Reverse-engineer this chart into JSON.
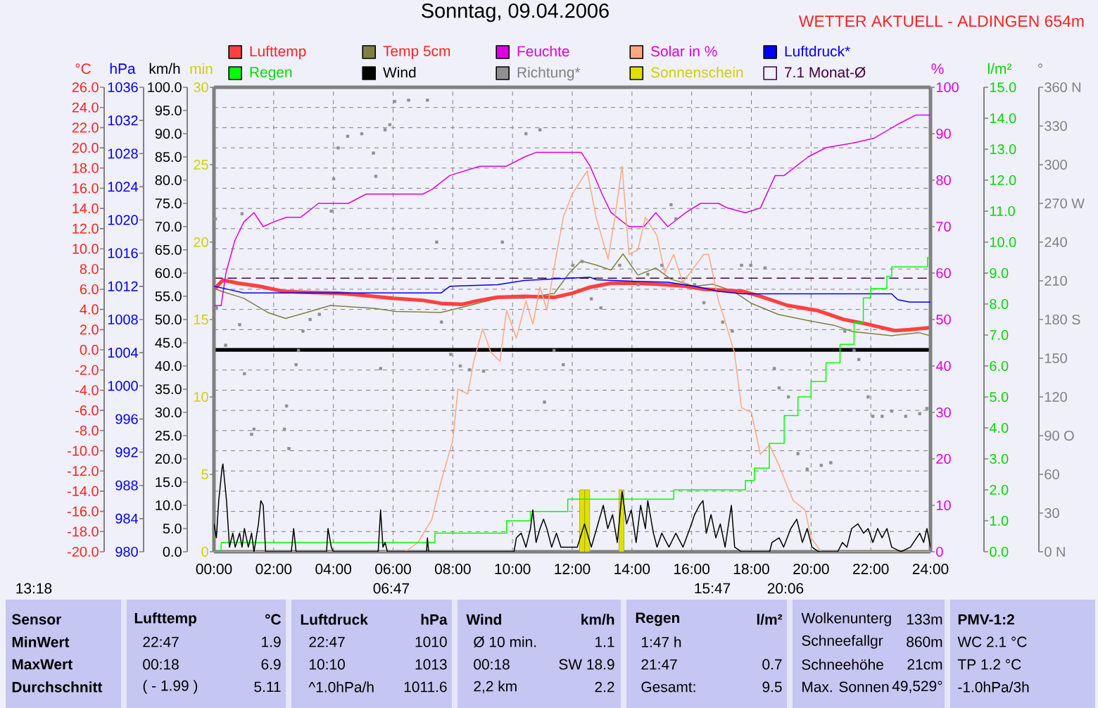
{
  "chart_data": [
    {
      "type": "line",
      "title": "Sonntag, 09.04.2006",
      "subtitle": "WETTER AKTUELL - ALDINGEN 654m",
      "xlim": [
        0,
        24
      ],
      "xticks": [
        {
          "value": 0,
          "label": "00:00"
        },
        {
          "value": 2,
          "label": "02:00"
        },
        {
          "value": 4,
          "label": "04:00"
        },
        {
          "value": 6,
          "label": "06:00"
        },
        {
          "value": 8,
          "label": "08:00"
        },
        {
          "value": 10,
          "label": "10:00"
        },
        {
          "value": 12,
          "label": "12:00"
        },
        {
          "value": 14,
          "label": "14:00"
        },
        {
          "value": 16,
          "label": "16:00"
        },
        {
          "value": 18,
          "label": "18:00"
        },
        {
          "value": 20,
          "label": "20:00"
        },
        {
          "value": 22,
          "label": "22:00"
        },
        {
          "value": 24,
          "label": "24:00"
        }
      ],
      "ylabel": "°C",
      "ylim": [
        -20,
        26
      ],
      "yticks": [
        {
          "value": -20,
          "label": "-20.0"
        },
        {
          "value": -18,
          "label": "-18.0"
        },
        {
          "value": -16,
          "label": "-16.0"
        },
        {
          "value": -14,
          "label": "-14.0"
        },
        {
          "value": -12,
          "label": "-12.0"
        },
        {
          "value": -10,
          "label": "-10.0"
        },
        {
          "value": -8,
          "label": "-8.0"
        },
        {
          "value": -6,
          "label": "-6.0"
        },
        {
          "value": -4,
          "label": "-4.0"
        },
        {
          "value": -2,
          "label": "-2.0"
        },
        {
          "value": 0,
          "label": "0.0"
        },
        {
          "value": 2,
          "label": "2.0"
        },
        {
          "value": 4,
          "label": "4.0"
        },
        {
          "value": 6,
          "label": "6.0"
        },
        {
          "value": 8,
          "label": "8.0"
        },
        {
          "value": 10,
          "label": "10.0"
        },
        {
          "value": 12,
          "label": "12.0"
        },
        {
          "value": 14,
          "label": "14.0"
        },
        {
          "value": 16,
          "label": "16.0"
        },
        {
          "value": 18,
          "label": "18.0"
        },
        {
          "value": 20,
          "label": "20.0"
        },
        {
          "value": 22,
          "label": "22.0"
        },
        {
          "value": 24,
          "label": "24.0"
        },
        {
          "value": 26,
          "label": "26.0"
        }
      ],
      "grid": true,
      "legend": "top",
      "series": [
        {
          "name": "Lufttemp",
          "color": "#ff4040",
          "x": [
            0,
            0.3,
            0.8,
            1.5,
            2.3,
            3.0,
            4.2,
            5.0,
            6.0,
            7.0,
            7.6,
            8.3,
            8.9,
            9.5,
            10.4,
            11.4,
            12.0,
            12.6,
            13.3,
            14.0,
            14.8,
            15.8,
            16.4,
            17.7,
            18.3,
            19.2,
            20.2,
            21.1,
            21.8,
            22.8,
            23.3,
            24.0
          ],
          "values": [
            6.0,
            6.9,
            6.6,
            6.3,
            5.8,
            5.7,
            5.6,
            5.4,
            5.1,
            4.9,
            4.6,
            4.5,
            4.9,
            5.2,
            5.3,
            5.2,
            5.6,
            6.2,
            6.6,
            6.6,
            6.5,
            6.3,
            6.0,
            5.8,
            5.3,
            4.4,
            3.9,
            3.0,
            2.6,
            1.9,
            2.0,
            2.2
          ]
        },
        {
          "name": "Temp 5cm",
          "color": "#808040",
          "x": [
            0,
            0.24,
            1.0,
            1.8,
            2.4,
            3.1,
            3.9,
            5.4,
            6.1,
            7.6,
            8.3,
            9.5,
            10.4,
            11.4,
            11.9,
            12.3,
            12.8,
            13.3,
            13.7,
            14.2,
            14.8,
            15.3,
            16.1,
            16.7,
            17.4,
            18.0,
            18.9,
            19.9,
            20.8,
            21.4,
            22.7,
            23.6,
            24.0
          ],
          "values": [
            6.1,
            5.8,
            5.1,
            3.7,
            3.1,
            3.7,
            4.4,
            4.1,
            3.8,
            3.7,
            4.2,
            5.1,
            5.1,
            5.6,
            7.6,
            8.8,
            8.4,
            7.9,
            9.5,
            7.4,
            8.1,
            7.0,
            6.3,
            6.5,
            5.8,
            4.6,
            3.5,
            2.9,
            2.4,
            1.8,
            1.4,
            1.7,
            1.4
          ]
        },
        {
          "name": "7.1 Monat-Ø",
          "color": "#400040",
          "line_style": "dashed",
          "x": [
            0,
            24
          ],
          "values": [
            7.1,
            7.1
          ]
        }
      ],
      "ref_lines": [
        {
          "axis": "y",
          "value": 0,
          "color": "#000000"
        }
      ],
      "annotations": [
        "13:18",
        "06:47",
        "15:47",
        "20:06"
      ]
    },
    {
      "type": "line",
      "xlim": [
        0,
        24
      ],
      "tick_labels": "y",
      "legend": "top",
      "ylabel": "hPa",
      "ylim": [
        980,
        1036
      ],
      "yticks": [
        980,
        984,
        988,
        992,
        996,
        1000,
        1004,
        1008,
        1012,
        1016,
        1020,
        1024,
        1028,
        1032,
        1036
      ],
      "y2label": "°",
      "y2lim": [
        0,
        360
      ],
      "y2ticks": [
        {
          "value": 0,
          "label": "0 N"
        },
        30,
        60,
        {
          "value": 90,
          "label": "90 O"
        },
        120,
        150,
        {
          "value": 180,
          "label": "180 S"
        },
        210,
        240,
        {
          "value": 270,
          "label": "270 W"
        },
        300,
        330,
        {
          "value": 360,
          "label": "360 N"
        }
      ],
      "series": [
        {
          "name": "Luftdruck*",
          "color": "#0000ff",
          "x": [
            0,
            0.4,
            1.0,
            7.6,
            7.9,
            9.5,
            10.4,
            11.4,
            12.6,
            12.8,
            14.1,
            15.2,
            16.1,
            16.9,
            17.7,
            22.7,
            22.9,
            23.3,
            24.0
          ],
          "values": [
            1012.0,
            1011.7,
            1011.2,
            1011.2,
            1012.0,
            1012.2,
            1012.7,
            1012.9,
            1013.1,
            1012.8,
            1012.6,
            1012.5,
            1012.0,
            1011.4,
            1011.1,
            1011.1,
            1010.4,
            1010.1,
            1010.1
          ]
        },
        {
          "name": "Richtung*",
          "color": "#909090",
          "type": "scatter",
          "marker": "square",
          "axis": "y2",
          "x": [
            0.05,
            0.08,
            0.39,
            0.86,
            0.94,
            1.02,
            1.26,
            1.34,
            2.36,
            2.43,
            2.51,
            2.75,
            2.83,
            2.98,
            3.22,
            3.53,
            3.93,
            4.01,
            4.16,
            4.48,
            4.95,
            5.34,
            5.42,
            5.58,
            5.73,
            5.89,
            6.05,
            6.52,
            7.15,
            7.46,
            7.62,
            7.93,
            8.25,
            8.56,
            9.03,
            9.66,
            10.45,
            10.92,
            11.07,
            11.39,
            11.7,
            12.02,
            12.33,
            12.64,
            12.96,
            13.59,
            14.21,
            14.53,
            15.0,
            15.31,
            15.47,
            16.1,
            16.41,
            17.04,
            17.36,
            17.67,
            17.98,
            18.46,
            18.77,
            18.93,
            19.24,
            19.56,
            19.87,
            20.34,
            20.66,
            21.13,
            21.44,
            21.6,
            21.91,
            22.07,
            22.38,
            22.7,
            23.17,
            23.64,
            23.88
          ],
          "values": [
            258,
            189,
            160,
            176,
            262,
            138,
            91,
            95,
            95,
            113,
            80,
            145,
            156,
            171,
            180,
            184,
            264,
            289,
            313,
            322,
            324,
            309,
            291,
            142,
            327,
            331,
            349,
            350,
            350,
            240,
            178,
            153,
            144,
            141,
            140,
            240,
            324,
            327,
            116,
            156,
            145,
            222,
            225,
            196,
            189,
            222,
            207,
            215,
            222,
            269,
            258,
            207,
            193,
            178,
            171,
            222,
            222,
            220,
            142,
            127,
            120,
            76,
            64,
            67,
            69,
            171,
            156,
            149,
            120,
            105,
            105,
            109,
            105,
            107,
            111
          ]
        }
      ]
    },
    {
      "type": "line",
      "xlim": [
        0,
        24
      ],
      "tick_labels": "y",
      "legend": "top",
      "ylabel": "km/h",
      "ylim": [
        0,
        100
      ],
      "yticks": [
        {
          "value": 0,
          "label": "0.0"
        },
        {
          "value": 5,
          "label": "5.0"
        },
        {
          "value": 10,
          "label": "10.0"
        },
        {
          "value": 15,
          "label": "15.0"
        },
        {
          "value": 20,
          "label": "20.0"
        },
        {
          "value": 25,
          "label": "25.0"
        },
        {
          "value": 30,
          "label": "30.0"
        },
        {
          "value": 35,
          "label": "35.0"
        },
        {
          "value": 40,
          "label": "40.0"
        },
        {
          "value": 45,
          "label": "45.0"
        },
        {
          "value": 50,
          "label": "50.0"
        },
        {
          "value": 55,
          "label": "55.0"
        },
        {
          "value": 60,
          "label": "60.0"
        },
        {
          "value": 65,
          "label": "65.0"
        },
        {
          "value": 70,
          "label": "70.0"
        },
        {
          "value": 75,
          "label": "75.0"
        },
        {
          "value": 80,
          "label": "80.0"
        },
        {
          "value": 85,
          "label": "85.0"
        },
        {
          "value": 90,
          "label": "90.0"
        },
        {
          "value": 95,
          "label": "95.0"
        },
        {
          "value": 100,
          "label": "100.0"
        }
      ],
      "y2label": "l/m²",
      "y2lim": [
        0,
        15
      ],
      "y2ticks": [
        {
          "value": 0,
          "label": "0.0"
        },
        {
          "value": 1,
          "label": "1.0"
        },
        {
          "value": 2,
          "label": "2.0"
        },
        {
          "value": 3,
          "label": "3.0"
        },
        {
          "value": 4,
          "label": "4.0"
        },
        {
          "value": 5,
          "label": "5.0"
        },
        {
          "value": 6,
          "label": "6.0"
        },
        {
          "value": 7,
          "label": "7.0"
        },
        {
          "value": 8,
          "label": "8.0"
        },
        {
          "value": 9,
          "label": "9.0"
        },
        {
          "value": 10,
          "label": "10.0"
        },
        {
          "value": 11,
          "label": "11.0"
        },
        {
          "value": 12,
          "label": "12.0"
        },
        {
          "value": 13,
          "label": "13.0"
        },
        {
          "value": 14,
          "label": "14.0"
        },
        {
          "value": 15,
          "label": "15.0"
        }
      ],
      "series": [
        {
          "name": "Wind",
          "color": "#000000",
          "x": [
            0,
            0.08,
            0.16,
            0.27,
            0.3,
            0.42,
            0.52,
            0.63,
            0.71,
            0.86,
            0.94,
            1.02,
            1.15,
            1.26,
            1.34,
            1.49,
            1.57,
            1.65,
            1.73,
            2.59,
            2.67,
            2.75,
            3.77,
            3.82,
            3.93,
            4.0,
            5.5,
            5.58,
            5.66,
            5.73,
            5.81,
            7.12,
            7.15,
            7.19,
            10.05,
            10.13,
            10.29,
            10.45,
            10.6,
            10.68,
            10.79,
            10.92,
            11.04,
            11.15,
            11.31,
            11.47,
            11.62,
            11.78,
            12.17,
            12.41,
            12.64,
            13.04,
            13.19,
            13.35,
            13.51,
            13.67,
            13.82,
            13.98,
            14.14,
            14.29,
            14.45,
            14.53,
            14.72,
            14.84,
            15.0,
            15.24,
            15.47,
            15.71,
            15.94,
            16.1,
            16.26,
            16.38,
            16.49,
            16.65,
            16.81,
            16.96,
            17.12,
            17.33,
            17.44,
            17.67,
            18.61,
            18.69,
            18.93,
            19.08,
            19.32,
            19.52,
            19.71,
            19.87,
            20.03,
            20.26,
            20.89,
            21.05,
            21.2,
            21.36,
            21.57,
            21.76,
            21.91,
            22.07,
            22.23,
            22.38,
            22.54,
            22.7,
            23.01,
            23.33,
            23.64,
            23.77,
            23.88,
            24.0
          ],
          "values": [
            6,
            3,
            11,
            18,
            18.9,
            11,
            1,
            4,
            1,
            4,
            1,
            5,
            1,
            4,
            0,
            6,
            11,
            10,
            0,
            0,
            5,
            0,
            0,
            5,
            1,
            0,
            0,
            9,
            1,
            2,
            0,
            0,
            3,
            0,
            0,
            3,
            4,
            1,
            5,
            9,
            2,
            5,
            7,
            5,
            1,
            4,
            1,
            1,
            1,
            6,
            1,
            10,
            5,
            8,
            2,
            13,
            6,
            9,
            2,
            10,
            5,
            11,
            4,
            1,
            4,
            1,
            4,
            1,
            5,
            8,
            10,
            11,
            4,
            8,
            3,
            6,
            1,
            10,
            1,
            0,
            0,
            2,
            3,
            1,
            5,
            7,
            2,
            5,
            1,
            0,
            0,
            2,
            1,
            5,
            6,
            4,
            5,
            2,
            5,
            3,
            5,
            1,
            0,
            1,
            4,
            2,
            5,
            1
          ]
        },
        {
          "name": "Regen",
          "color": "#00ff00",
          "type": "step",
          "axis": "y2",
          "x": [
            0,
            0.24,
            7.4,
            9.8,
            10.6,
            11.85,
            15.4,
            17.8,
            18.1,
            18.6,
            19.1,
            19.56,
            20.0,
            20.5,
            20.97,
            21.44,
            21.75,
            22.0,
            22.54,
            22.7,
            23.9,
            24.0
          ],
          "values": [
            0,
            0.3,
            0.6,
            1.0,
            1.3,
            1.7,
            2.0,
            2.3,
            2.7,
            3.5,
            4.4,
            5.0,
            5.5,
            6.1,
            6.7,
            7.4,
            8.2,
            8.5,
            8.9,
            9.2,
            9.5,
            9.5
          ]
        }
      ]
    },
    {
      "type": "line",
      "xlim": [
        0,
        24
      ],
      "tick_labels": "y",
      "legend": "top",
      "ylabel": "min",
      "ylim": [
        0,
        30
      ],
      "yticks": [
        0,
        5,
        10,
        15,
        20,
        25,
        30
      ],
      "y2label": "%",
      "y2lim": [
        0,
        100
      ],
      "y2ticks": [
        0,
        10,
        20,
        30,
        40,
        50,
        60,
        70,
        80,
        90,
        100
      ],
      "series": [
        {
          "name": "Sonnenschein",
          "color": "#e0e000",
          "type": "bar",
          "x": [
            12.33,
            12.5,
            13.65
          ],
          "values": [
            4,
            4,
            4
          ]
        },
        {
          "name": "Feuchte",
          "color": "#e000e0",
          "axis": "y2",
          "x": [
            0,
            0.24,
            0.4,
            0.7,
            1.0,
            1.34,
            1.65,
            2.0,
            2.43,
            2.9,
            3.5,
            4.5,
            5.1,
            7.0,
            7.3,
            7.9,
            8.9,
            9.8,
            10.4,
            10.8,
            11.4,
            12.0,
            12.3,
            12.6,
            13.0,
            13.3,
            13.9,
            14.4,
            14.8,
            15.2,
            15.8,
            16.3,
            16.9,
            17.2,
            17.8,
            18.3,
            18.8,
            19.1,
            19.9,
            20.5,
            21.4,
            22.1,
            22.9,
            23.5,
            24.0
          ],
          "values": [
            53,
            53,
            60,
            67,
            71,
            73,
            70,
            71,
            72,
            72,
            75,
            75,
            77,
            77,
            78,
            81,
            83,
            83,
            85,
            86,
            86,
            86,
            86,
            83,
            77,
            73,
            70,
            70,
            73,
            70,
            73,
            75,
            75,
            74,
            73,
            74,
            81,
            81,
            85,
            87,
            88,
            89,
            92,
            94,
            94
          ]
        },
        {
          "name": "Solar in %",
          "color": "#ffa880",
          "axis": "y2",
          "x": [
            0,
            6.4,
            6.83,
            7.3,
            7.6,
            8.0,
            8.17,
            8.5,
            8.7,
            9.0,
            9.27,
            9.58,
            9.8,
            10.13,
            10.45,
            10.68,
            10.92,
            11.15,
            11.47,
            11.7,
            12.0,
            12.5,
            12.8,
            13.2,
            13.43,
            13.67,
            13.9,
            14.2,
            14.45,
            14.84,
            15.1,
            15.4,
            15.7,
            15.94,
            16.4,
            16.57,
            16.9,
            17.1,
            17.43,
            17.67,
            18.0,
            18.3,
            18.6,
            18.9,
            19.4,
            19.8,
            20.0,
            20.34,
            24.0
          ],
          "values": [
            0,
            0,
            2,
            7,
            15,
            24,
            35,
            34,
            41,
            48,
            43,
            41,
            52,
            46,
            54,
            49,
            57,
            52,
            64,
            72,
            77,
            82,
            72,
            63,
            72,
            83,
            64,
            65,
            72,
            68,
            60,
            64,
            58,
            60,
            64,
            64,
            54,
            50,
            43,
            31,
            30,
            21,
            23,
            19,
            11,
            9,
            3,
            0,
            0
          ]
        }
      ]
    },
    {
      "type": "other",
      "annotations": [
        "Sensor",
        "Lufttemp",
        "°C",
        "Luftdruck",
        "hPa",
        "Wind",
        "km/h",
        "Regen",
        "l/m²",
        "Wolkenunterg",
        "133m",
        "PMV-1:2",
        "MinWert",
        "22:47",
        "1.9",
        "22:47",
        "1010",
        "Ø 10 min.",
        "1.1",
        "1:47 h",
        "Schneefallgr",
        "860m",
        "WC 2.1 °C",
        "MaxWert",
        "00:18",
        "6.9",
        "10:10",
        "1013",
        "00:18",
        "SW 18.9",
        "21:47",
        "0.7",
        "Schneehöhe",
        "21cm",
        "TP 1.2 °C",
        "Durchschnitt",
        "( - 1.99 )",
        "5.11",
        "^1.0hPa/h",
        "1011.6",
        "2,2 km",
        "2.2",
        "Gesamt:",
        "9.5",
        "Max. Sonnen",
        "49,529°",
        "-1.0hPa/3h"
      ]
    }
  ]
}
